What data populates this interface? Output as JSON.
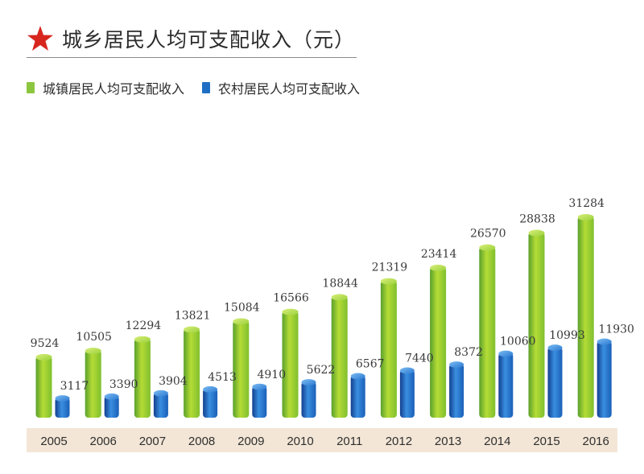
{
  "title": "城乡居民人均可支配收入（元）",
  "icons": {
    "title_icon": "star-icon"
  },
  "colors": {
    "urban": "#8cc63f",
    "rural": "#1e6fc4",
    "star": "#d7261e",
    "axis_band": "#f3e6d6"
  },
  "legend": {
    "urban_label": "城镇居民人均可支配收入",
    "rural_label": "农村居民人均可支配收入"
  },
  "chart_data": {
    "type": "bar",
    "title": "城乡居民人均可支配收入（元）",
    "xlabel": "",
    "ylabel": "",
    "categories": [
      "2005",
      "2006",
      "2007",
      "2008",
      "2009",
      "2010",
      "2011",
      "2012",
      "2013",
      "2014",
      "2015",
      "2016"
    ],
    "series": [
      {
        "name": "城镇居民人均可支配收入",
        "values": [
          9524,
          10505,
          12294,
          13821,
          15084,
          16566,
          18844,
          21319,
          23414,
          26570,
          28838,
          31284
        ]
      },
      {
        "name": "农村居民人均可支配收入",
        "values": [
          3117,
          3390,
          3904,
          4513,
          4910,
          5622,
          6567,
          7440,
          8372,
          10060,
          10993,
          11930
        ]
      }
    ],
    "grid": false,
    "legend_position": "top-left"
  }
}
